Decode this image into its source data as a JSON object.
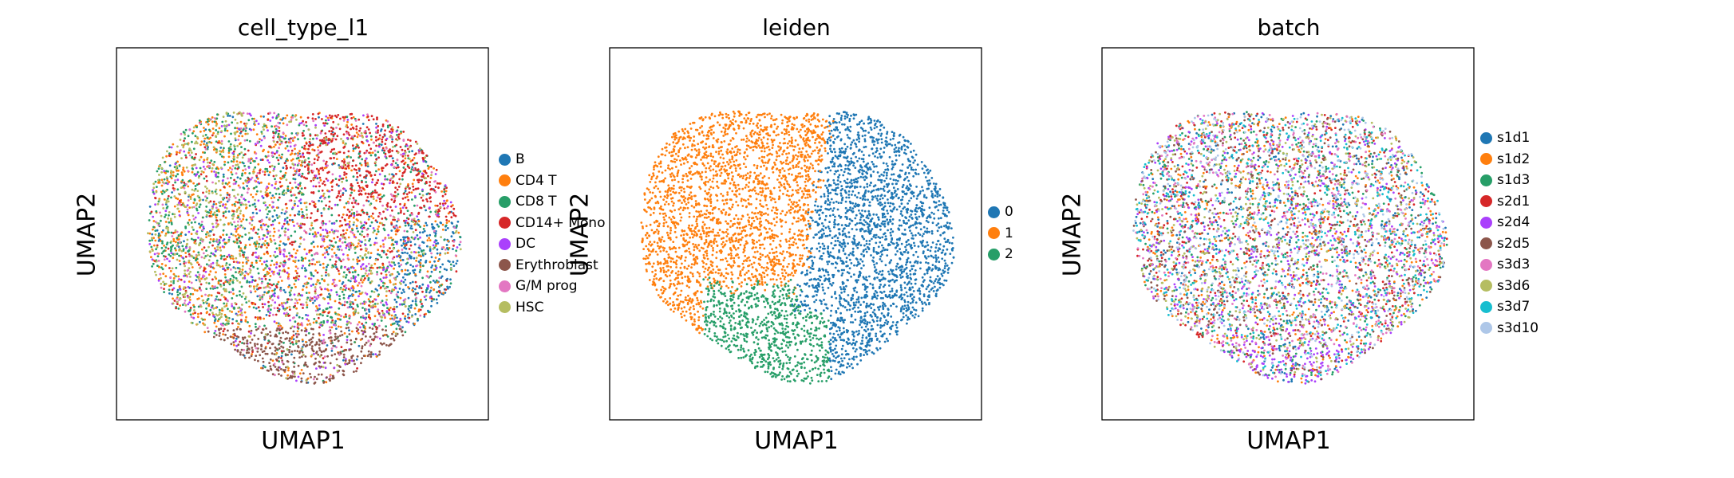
{
  "figure": "UMAP embeddings colored by cell type, Leiden cluster and batch",
  "chart_data": [
    {
      "type": "scatter",
      "title": "cell_type_l1",
      "xlabel": "UMAP1",
      "ylabel": "UMAP2",
      "xticks": [],
      "yticks": [],
      "legend_position": "right",
      "series": [
        {
          "name": "B",
          "color": "#1f77b4"
        },
        {
          "name": "CD4 T",
          "color": "#ff7f0e"
        },
        {
          "name": "CD8 T",
          "color": "#279e68"
        },
        {
          "name": "CD14+ Mono",
          "color": "#d62728"
        },
        {
          "name": "DC",
          "color": "#aa40fc"
        },
        {
          "name": "Erythroblast",
          "color": "#8c564b"
        },
        {
          "name": "G/M prog",
          "color": "#e377c2"
        },
        {
          "name": "HSC",
          "color": "#b5bd61"
        }
      ]
    },
    {
      "type": "scatter",
      "title": "leiden",
      "xlabel": "UMAP1",
      "ylabel": "UMAP2",
      "xticks": [],
      "yticks": [],
      "legend_position": "right",
      "series": [
        {
          "name": "0",
          "color": "#1f77b4"
        },
        {
          "name": "1",
          "color": "#ff7f0e"
        },
        {
          "name": "2",
          "color": "#279e68"
        }
      ]
    },
    {
      "type": "scatter",
      "title": "batch",
      "xlabel": "UMAP1",
      "ylabel": "UMAP2",
      "xticks": [],
      "yticks": [],
      "legend_position": "right",
      "series": [
        {
          "name": "s1d1",
          "color": "#1f77b4"
        },
        {
          "name": "s1d2",
          "color": "#ff7f0e"
        },
        {
          "name": "s1d3",
          "color": "#279e68"
        },
        {
          "name": "s2d1",
          "color": "#d62728"
        },
        {
          "name": "s2d4",
          "color": "#aa40fc"
        },
        {
          "name": "s2d5",
          "color": "#8c564b"
        },
        {
          "name": "s3d3",
          "color": "#e377c2"
        },
        {
          "name": "s3d6",
          "color": "#b5bd61"
        },
        {
          "name": "s3d7",
          "color": "#17becf"
        },
        {
          "name": "s3d10",
          "color": "#aec7e8"
        }
      ]
    }
  ]
}
